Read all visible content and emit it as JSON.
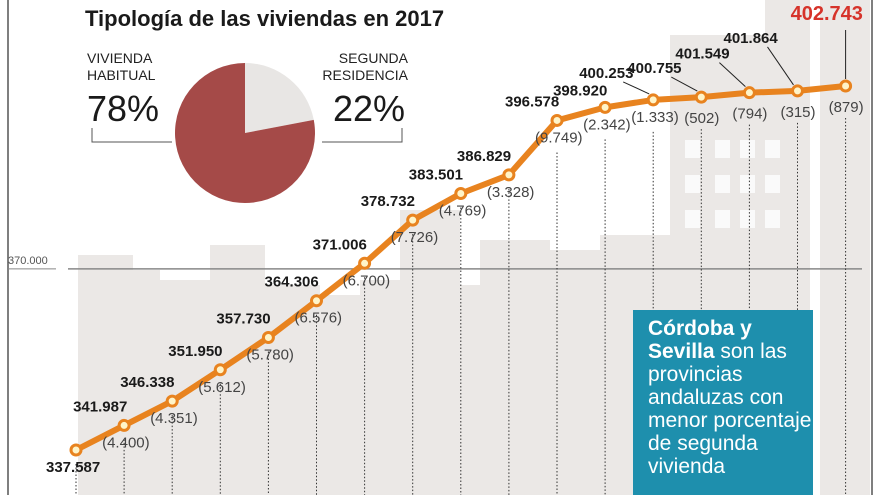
{
  "chart_data": [
    {
      "type": "pie",
      "title": "Tipología de las viviendas en 2017",
      "slices": [
        {
          "label": "VIVIENDA HABITUAL",
          "value": 78,
          "display": "78%",
          "color": "#a54a48"
        },
        {
          "label": "SEGUNDA RESIDENCIA",
          "value": 22,
          "display": "22%",
          "color": "#e8e6e4"
        }
      ]
    },
    {
      "type": "line",
      "reference_line": {
        "value": 370000,
        "label": "370.000"
      },
      "line_color": "#e8831f",
      "values": [
        337587,
        341987,
        346338,
        351950,
        357730,
        364306,
        371006,
        378732,
        383501,
        386829,
        396578,
        398920,
        400253,
        400755,
        401549,
        401864,
        402743
      ],
      "value_labels": [
        "337.587",
        "341.987",
        "346.338",
        "351.950",
        "357.730",
        "364.306",
        "371.006",
        "378.732",
        "383.501",
        "386.829",
        "396.578",
        "398.920",
        "400.253",
        "400.755",
        "401.549",
        "401.864",
        "402.743"
      ],
      "increment_labels": [
        "",
        "(4.400)",
        "(4.351)",
        "(5.612)",
        "(5.780)",
        "(6.576)",
        "(6.700)",
        "(7.726)",
        "(4.769)",
        "(3.328)",
        "(9.749)",
        "(2.342)",
        "(1.333)",
        "(502)",
        "(794)",
        "(315)",
        "(879)"
      ],
      "highlight_color": "#d6332a"
    }
  ],
  "callout": {
    "bold": "Córdoba y Sevilla",
    "text": " son las provincias andaluzas con menor porcentaje de segunda vivienda",
    "background": "#1e8fad"
  }
}
